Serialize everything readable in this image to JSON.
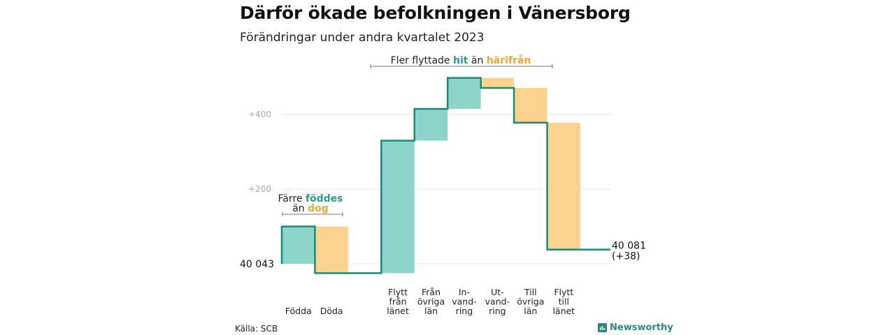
{
  "colors": {
    "positive": "#8dd5cb",
    "negative": "#fad48e",
    "line": "#1a8a78",
    "grid": "#e4e4e4",
    "teal_text": "#2a9d8f",
    "orange_text": "#f0a830"
  },
  "header": {
    "title": "Därför ökade befolkningen i Vänersborg",
    "subtitle": "Förändringar under andra kvartalet 2023"
  },
  "footer": {
    "source": "Källa: SCB",
    "brand": "Newsworthy",
    "brand_icon": "bar-chart-icon"
  },
  "annotations": {
    "births": {
      "line1_a": "Färre ",
      "line1_b": "föddes",
      "line2_a": "än ",
      "line2_b": "dog"
    },
    "moves": {
      "a": "Fler flyttade ",
      "b": "hit",
      "c": " än ",
      "d": "härifrån"
    }
  },
  "chart_data": {
    "type": "waterfall",
    "start_value": 40043,
    "start_label": "40  043",
    "end_label": "40 081",
    "end_change_label": "(+38)",
    "y_ticks": [
      {
        "value": 400,
        "label": "+400"
      },
      {
        "value": 200,
        "label": "+200"
      }
    ],
    "ylim": [
      -40,
      505
    ],
    "steps": [
      {
        "category": [
          "Födda"
        ],
        "change": 100
      },
      {
        "category": [
          "Döda"
        ],
        "change": -125
      },
      {
        "category": [],
        "change": 0
      },
      {
        "category": [
          "Flytt",
          "från",
          "länet"
        ],
        "change": 355
      },
      {
        "category": [
          "Från",
          "övriga",
          "län"
        ],
        "change": 85
      },
      {
        "category": [
          "In-",
          "vand-",
          "ring"
        ],
        "change": 83
      },
      {
        "category": [
          "Ut-",
          "vand-",
          "ring"
        ],
        "change": -27
      },
      {
        "category": [
          "Till",
          "övriga",
          "län"
        ],
        "change": -93
      },
      {
        "category": [
          "Flytt",
          "till",
          "länet"
        ],
        "change": -340
      }
    ],
    "total_change": 38
  }
}
